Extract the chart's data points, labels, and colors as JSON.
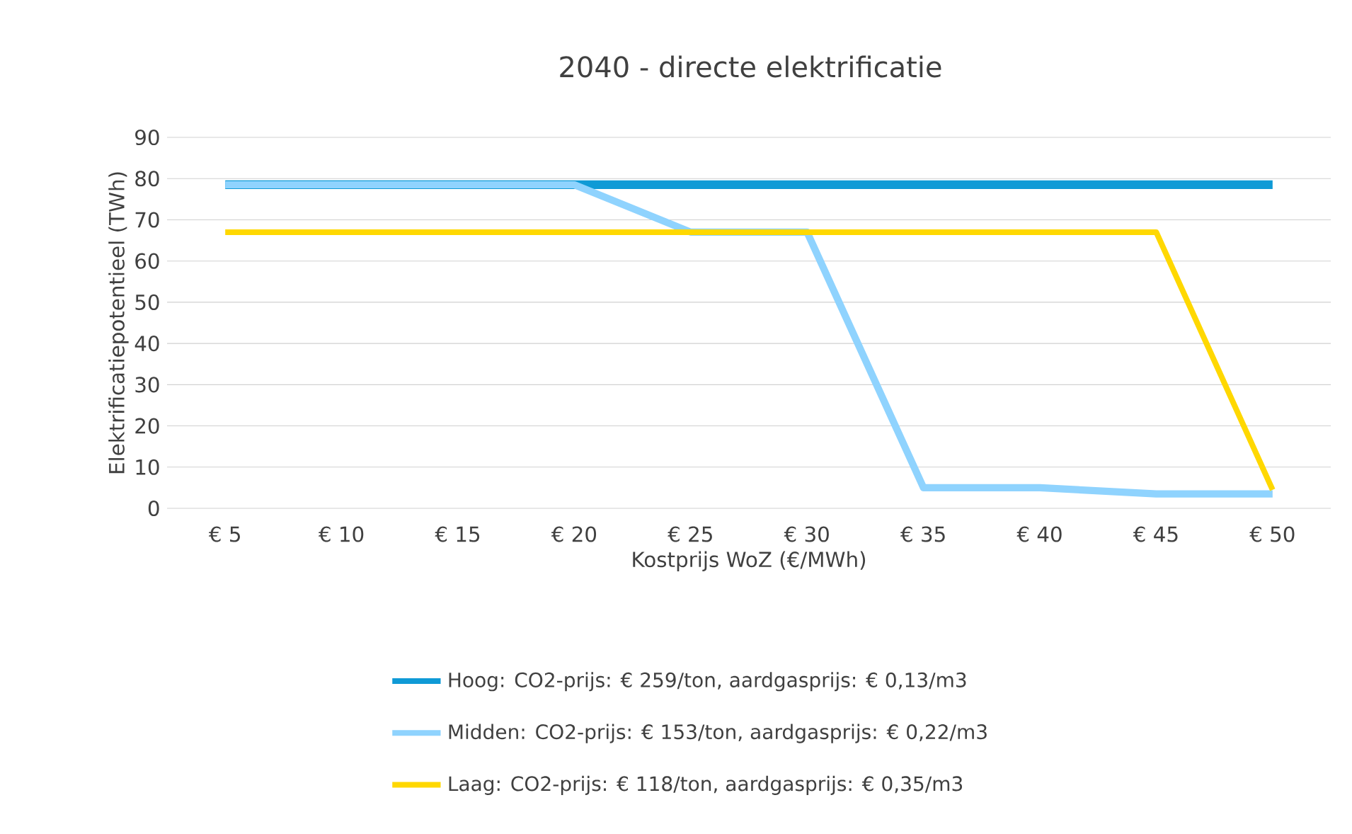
{
  "chart_data": {
    "type": "line",
    "title": "2040 - directe elektrificatie",
    "xlabel": "Kostprijs WoZ (€/MWh)",
    "ylabel": "Elektrificatiepotentieel (TWh)",
    "categories": [
      "€ 5",
      "€ 10",
      "€ 15",
      "€ 20",
      "€ 25",
      "€ 30",
      "€ 35",
      "€ 40",
      "€ 45",
      "€ 50"
    ],
    "series": [
      {
        "name": "Hoog: CO2-prijs: € 259/ton, aardgasprijs: € 0,13/m3",
        "color": "#0f9ad6",
        "values": [
          78.5,
          78.5,
          78.5,
          78.5,
          78.5,
          78.5,
          78.5,
          78.5,
          78.5,
          78.5
        ]
      },
      {
        "name": "Midden: CO2-prijs: € 153/ton, aardgasprijs: € 0,22/m3",
        "color": "#8fd3fe",
        "values": [
          78.5,
          78.5,
          78.5,
          78.5,
          67,
          67,
          5,
          5,
          3.5,
          3.5
        ]
      },
      {
        "name": "Laag: CO2-prijs: € 118/ton, aardgasprijs: € 0,35/m3",
        "color": "#ffd800",
        "values": [
          67,
          67,
          67,
          67,
          67,
          67,
          67,
          67,
          67,
          4.5
        ]
      }
    ],
    "ylim": [
      0,
      90
    ],
    "yticks": [
      0,
      10,
      20,
      30,
      40,
      50,
      60,
      70,
      80,
      90
    ],
    "grid": "y",
    "legend": "bottom",
    "marker": "none",
    "line_style": "solid"
  }
}
